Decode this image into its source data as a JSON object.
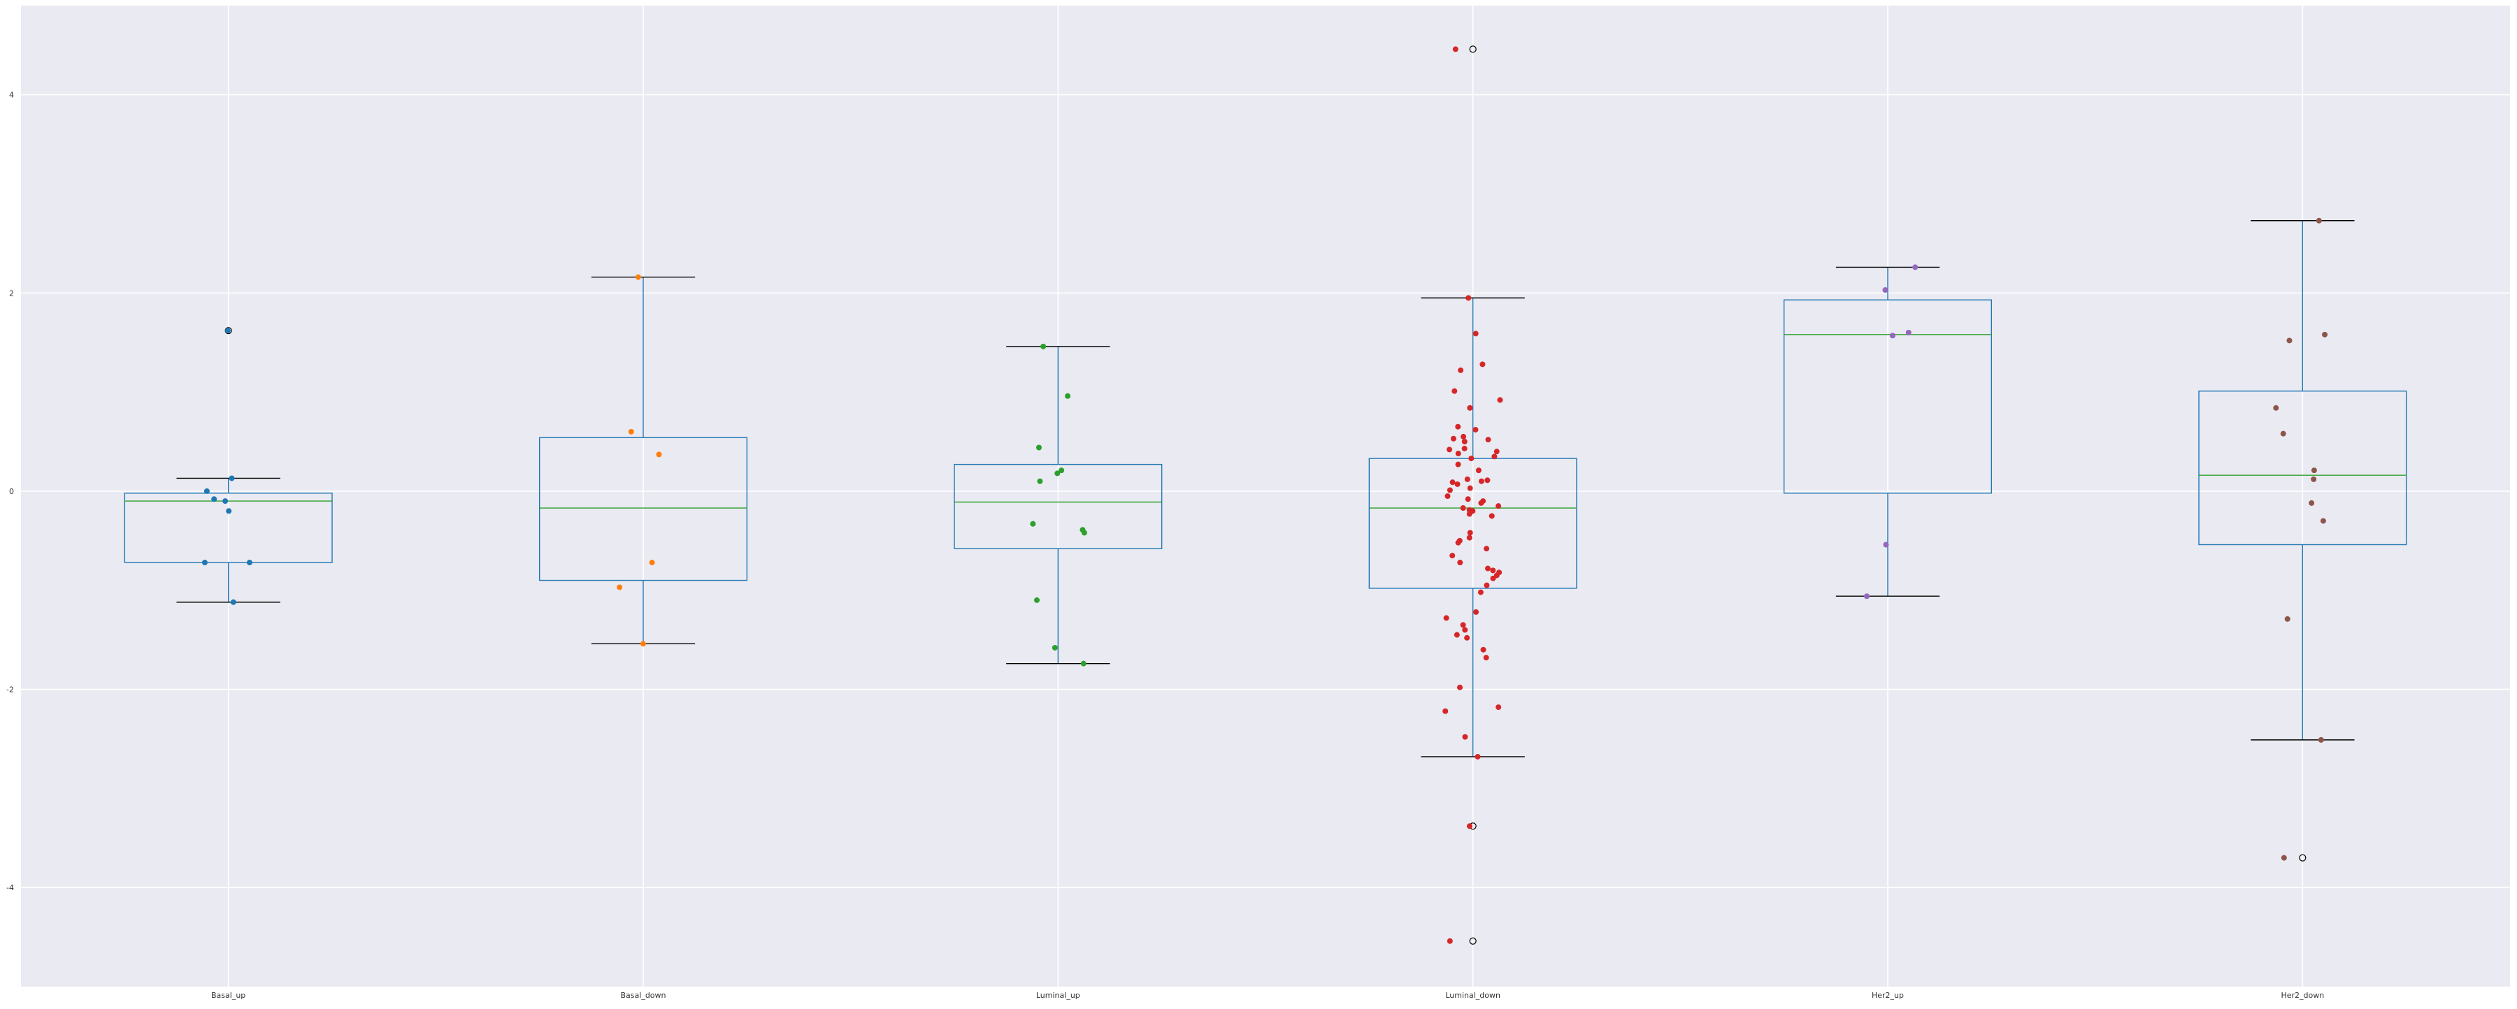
{
  "chart_data": {
    "type": "box",
    "title": "",
    "xlabel": "",
    "ylabel": "",
    "ylim": [
      -5.0,
      4.9
    ],
    "yticks": [
      -4,
      -2,
      0,
      2,
      4
    ],
    "ytick_labels": [
      "-4",
      "-2",
      "0",
      "2",
      "4"
    ],
    "grid": true,
    "background": "#eaeaf2",
    "categories": [
      "Basal_up",
      "Basal_down",
      "Luminal_up",
      "Luminal_down",
      "Her2_up",
      "Her2_down"
    ],
    "colors": {
      "box": "#1f77b4",
      "median": "#2ca02c",
      "whisker_cap": "#000000",
      "points": [
        "#1f77b4",
        "#ff7f0e",
        "#2ca02c",
        "#d62728",
        "#9467bd",
        "#8c564b"
      ]
    },
    "boxes": [
      {
        "label": "Basal_up",
        "whislo": -1.12,
        "q1": -0.72,
        "med": -0.1,
        "q3": -0.02,
        "whishi": 0.13,
        "fliers": [
          1.62
        ]
      },
      {
        "label": "Basal_down",
        "whislo": -1.54,
        "q1": -0.9,
        "med": -0.17,
        "q3": 0.54,
        "whishi": 2.16,
        "fliers": []
      },
      {
        "label": "Luminal_up",
        "whislo": -1.74,
        "q1": -0.58,
        "med": -0.11,
        "q3": 0.27,
        "whishi": 1.46,
        "fliers": []
      },
      {
        "label": "Luminal_down",
        "whislo": -2.68,
        "q1": -0.98,
        "med": -0.17,
        "q3": 0.33,
        "whishi": 1.95,
        "fliers": [
          4.46,
          -3.38,
          -4.54
        ]
      },
      {
        "label": "Her2_up",
        "whislo": -1.06,
        "q1": -0.02,
        "med": 1.58,
        "q3": 1.93,
        "whishi": 2.26,
        "fliers": []
      },
      {
        "label": "Her2_down",
        "whislo": -2.51,
        "q1": -0.54,
        "med": 0.16,
        "q3": 1.01,
        "whishi": 2.73,
        "fliers": [
          -3.7
        ]
      }
    ],
    "points": [
      {
        "group": "Basal_up",
        "values": [
          1.62,
          0.13,
          0.0,
          -0.08,
          -0.1,
          -0.2,
          -0.72,
          -0.72,
          -1.12
        ]
      },
      {
        "group": "Basal_down",
        "values": [
          2.16,
          0.6,
          0.37,
          -0.72,
          -0.97,
          -1.54
        ]
      },
      {
        "group": "Luminal_up",
        "values": [
          1.46,
          0.96,
          0.44,
          0.21,
          0.18,
          0.1,
          -0.33,
          -0.39,
          -0.42,
          -1.1,
          -1.58,
          -1.74
        ]
      },
      {
        "group": "Luminal_down",
        "values": [
          4.46,
          1.95,
          1.59,
          1.28,
          1.22,
          1.01,
          0.92,
          0.84,
          0.65,
          0.62,
          0.55,
          0.53,
          0.52,
          0.5,
          0.43,
          0.42,
          0.4,
          0.38,
          0.35,
          0.33,
          0.27,
          0.21,
          0.12,
          0.11,
          0.1,
          0.09,
          0.07,
          0.03,
          0.01,
          -0.05,
          -0.08,
          -0.1,
          -0.12,
          -0.15,
          -0.17,
          -0.19,
          -0.2,
          -0.23,
          -0.25,
          -0.42,
          -0.47,
          -0.5,
          -0.52,
          -0.58,
          -0.65,
          -0.72,
          -0.78,
          -0.8,
          -0.82,
          -0.85,
          -0.88,
          -0.95,
          -1.02,
          -1.22,
          -1.28,
          -1.35,
          -1.4,
          -1.45,
          -1.48,
          -1.6,
          -1.68,
          -1.98,
          -2.18,
          -2.22,
          -2.48,
          -2.68,
          -3.38,
          -4.54
        ]
      },
      {
        "group": "Her2_up",
        "values": [
          2.26,
          2.03,
          1.6,
          1.57,
          -0.54,
          -1.06
        ]
      },
      {
        "group": "Her2_down",
        "values": [
          2.73,
          1.58,
          1.52,
          0.84,
          0.58,
          0.21,
          0.12,
          -0.12,
          -0.3,
          -1.29,
          -2.51,
          -3.7
        ]
      }
    ]
  }
}
